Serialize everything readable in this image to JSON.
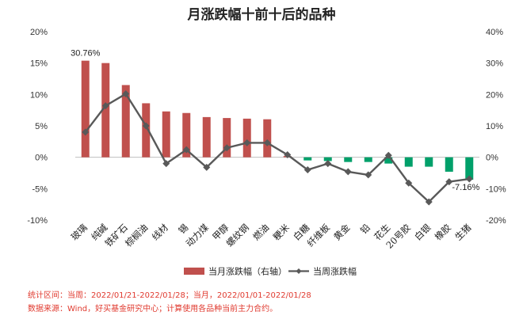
{
  "chart_data": {
    "type": "bar",
    "title": "月涨跌幅十前十后的品种",
    "categories": [
      "玻璃",
      "纯碱",
      "铁矿石",
      "棕榈油",
      "线材",
      "锡",
      "动力煤",
      "甲醇",
      "螺纹钢",
      "燃油",
      "粳米",
      "白糖",
      "纤维板",
      "黄金",
      "铅",
      "花生",
      "20号胶",
      "白银",
      "橡胶",
      "生猪"
    ],
    "series": [
      {
        "name": "当月涨跌幅（右轴）",
        "axis": "right",
        "style": "bar",
        "color": "#c0504d",
        "values": [
          30.76,
          30.0,
          23.0,
          17.2,
          14.6,
          14.1,
          12.8,
          12.5,
          12.3,
          12.1,
          0.4,
          -1.0,
          -1.2,
          -1.5,
          -1.5,
          -2.0,
          -3.0,
          -3.0,
          -4.6,
          -7.16
        ]
      },
      {
        "name": "当周涨跌幅",
        "axis": "left",
        "style": "line",
        "color": "#595959",
        "values": [
          4.0,
          8.2,
          10.1,
          5.0,
          -1.0,
          1.2,
          -1.6,
          1.5,
          2.3,
          2.3,
          0.4,
          -2.0,
          -1.0,
          -2.3,
          -2.8,
          0.3,
          -4.1,
          -7.1,
          -3.9,
          -3.45
        ]
      }
    ],
    "left_axis": {
      "ylim": [
        -10,
        20
      ],
      "ticks": [
        "-10%",
        "-5%",
        "0%",
        "5%",
        "10%",
        "15%",
        "20%"
      ]
    },
    "right_axis": {
      "ylim": [
        -20,
        40
      ],
      "ticks": [
        "-20%",
        "-10%",
        "0%",
        "10%",
        "20%",
        "30%",
        "40%"
      ]
    },
    "data_labels": [
      {
        "category": "玻璃",
        "text": "30.76%"
      },
      {
        "category": "生猪",
        "text": "-7.16%"
      }
    ],
    "legend_position": "bottom"
  },
  "notes": {
    "stat_period": "统计区间：当周：2022/01/21-2022/01/28；当月，2022/01/01-2022/01/28",
    "source": "数据来源：Wind，好买基金研究中心；计算使用各品种当前主力合约。"
  }
}
